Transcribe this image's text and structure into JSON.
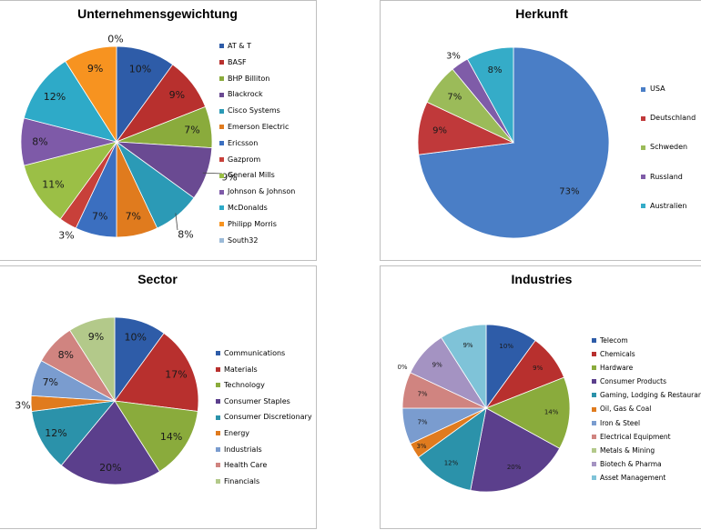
{
  "chart_data": [
    {
      "type": "pie",
      "title": "Unternehmensgewichtung",
      "legend_position": "right",
      "categories": [
        "AT & T",
        "BASF",
        "BHP Billiton",
        "Blackrock",
        "Cisco Systems",
        "Emerson Electric",
        "Ericsson",
        "Gazprom",
        "General Mills",
        "Johnson & Johnson",
        "McDonalds",
        "Philipp Morris",
        "South32"
      ],
      "values": [
        10,
        9,
        7,
        9,
        8,
        7,
        7,
        3,
        11,
        8,
        12,
        9,
        0
      ],
      "data_labels": [
        "10%",
        "9%",
        "7%",
        "9%",
        "8%",
        "7%",
        "7%",
        "3%",
        "11%",
        "8%",
        "12%",
        "9%",
        "0%"
      ],
      "colors": [
        "#2e5ca8",
        "#b8302e",
        "#8aab3c",
        "#6a4a92",
        "#2b9ab6",
        "#e07b1e",
        "#3b6fc0",
        "#c8403a",
        "#9bbf46",
        "#7e5aa8",
        "#2eaac8",
        "#f79320",
        "#9bbad8"
      ]
    },
    {
      "type": "pie",
      "title": "Herkunft",
      "legend_position": "right",
      "categories": [
        "USA",
        "Deutschland",
        "Schweden",
        "Russland",
        "Australien"
      ],
      "values": [
        73,
        9,
        7,
        3,
        8
      ],
      "data_labels": [
        "73%",
        "9%",
        "7%",
        "3%",
        "8%"
      ],
      "colors": [
        "#4a7ec6",
        "#c0393a",
        "#9bbb59",
        "#7f5ca8",
        "#35acc8"
      ]
    },
    {
      "type": "pie",
      "title": "Sector",
      "legend_position": "right",
      "categories": [
        "Communications",
        "Materials",
        "Technology",
        "Consumer Staples",
        "Consumer Discretionary",
        "Energy",
        "Industrials",
        "Health Care",
        "Financials"
      ],
      "values": [
        10,
        17,
        14,
        20,
        12,
        3,
        7,
        8,
        9
      ],
      "data_labels": [
        "10%",
        "17%",
        "14%",
        "20%",
        "12%",
        "3%",
        "7%",
        "8%",
        "9%"
      ],
      "colors": [
        "#2e5ca8",
        "#b8302e",
        "#8aab3c",
        "#5b3f8c",
        "#2b92aa",
        "#e07b1e",
        "#7a9ccf",
        "#d08480",
        "#b3c98a"
      ]
    },
    {
      "type": "pie",
      "title": "Industries",
      "legend_position": "right",
      "categories": [
        "Telecom",
        "Chemicals",
        "Hardware",
        "Consumer Products",
        "Gaming, Lodging & Restaurants",
        "Oil, Gas & Coal",
        "Iron & Steel",
        "Electrical Equipment",
        "Metals & Mining",
        "Biotech & Pharma",
        "Asset Management"
      ],
      "values": [
        10,
        9,
        14,
        20,
        12,
        3,
        7,
        7,
        0,
        9,
        9
      ],
      "data_labels": [
        "10%",
        "9%",
        "14%",
        "20%",
        "12%",
        "3%",
        "7%",
        "7%",
        "0%",
        "9%",
        "9%"
      ],
      "colors": [
        "#2e5ca8",
        "#b8302e",
        "#8aab3c",
        "#5b3f8c",
        "#2b92aa",
        "#e07b1e",
        "#7a9ccf",
        "#d08480",
        "#b3c98a",
        "#a493c2",
        "#7fc3d8"
      ]
    }
  ]
}
